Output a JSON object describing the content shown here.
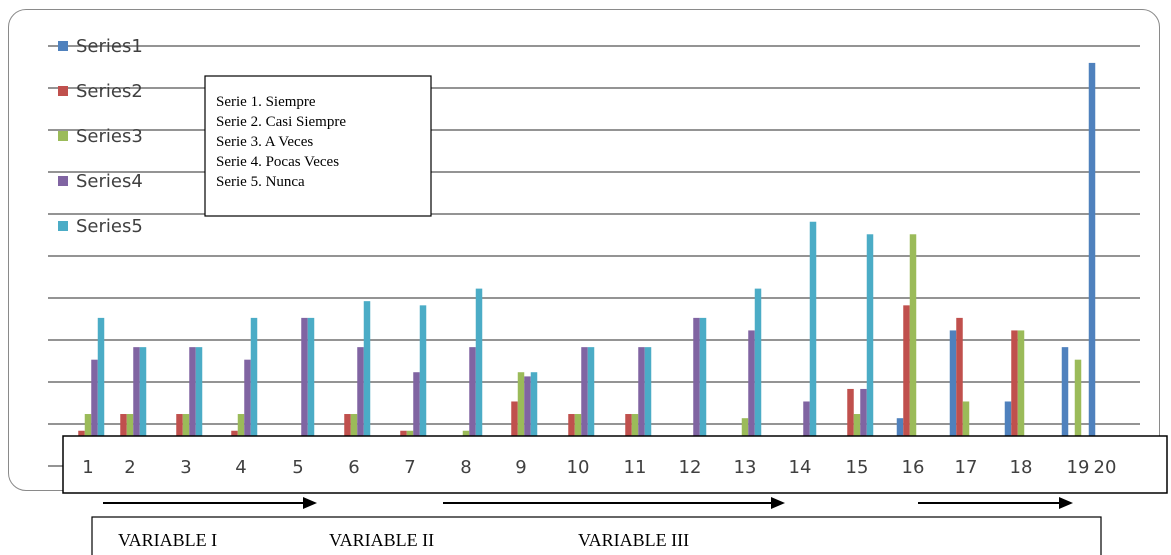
{
  "chart_data": {
    "type": "bar",
    "categories": [
      "1",
      "2",
      "3",
      "4",
      "5",
      "6",
      "7",
      "8",
      "9",
      "10",
      "11",
      "12",
      "13",
      "14",
      "15",
      "16",
      "17",
      "18",
      "19",
      "20"
    ],
    "ylim": [
      0,
      10
    ],
    "grid": true,
    "legend_position": "top-left",
    "series": [
      {
        "name": "Series1",
        "color": "#4F81BD",
        "values": [
          0,
          0,
          0,
          0,
          0,
          0,
          0,
          0,
          0,
          0,
          0,
          0,
          0,
          0,
          0,
          1,
          3.1,
          1.4,
          2.7,
          9.5
        ]
      },
      {
        "name": "Series2",
        "color": "#C0504D",
        "values": [
          0.7,
          1.1,
          1.1,
          0.7,
          0.4,
          1.1,
          0.7,
          0.1,
          1.4,
          1.1,
          1.1,
          0.4,
          0,
          0.1,
          1.7,
          3.7,
          3.4,
          3.1,
          0,
          0
        ]
      },
      {
        "name": "Series3",
        "color": "#9BBB59",
        "values": [
          1.1,
          1.1,
          1.1,
          1.1,
          0.4,
          1.1,
          0.7,
          0.7,
          2.1,
          1.1,
          1.1,
          0.4,
          1,
          0.4,
          1.1,
          5.4,
          1.4,
          3.1,
          2.4,
          0
        ]
      },
      {
        "name": "Series4",
        "color": "#8064A2",
        "values": [
          2.4,
          2.7,
          2.7,
          2.4,
          3.4,
          2.7,
          2.1,
          2.7,
          2,
          2.7,
          2.7,
          3.4,
          3.1,
          1.4,
          1.7,
          0,
          0,
          0,
          0,
          0
        ]
      },
      {
        "name": "Series5",
        "color": "#4BACC6",
        "values": [
          3.4,
          2.7,
          2.7,
          3.4,
          3.4,
          3.8,
          3.7,
          4.1,
          2.1,
          2.7,
          2.7,
          3.4,
          4.1,
          5.7,
          5.4,
          0,
          0,
          0,
          0,
          0
        ]
      }
    ]
  },
  "note_lines": [
    "Serie 1. Siempre",
    "Serie 2. Casi Siempre",
    "Serie 3. A Veces",
    "Serie 4. Pocas Veces",
    "Serie 5. Nunca"
  ],
  "variables": [
    "VARIABLE I",
    "VARIABLE II",
    "VARIABLE III"
  ]
}
